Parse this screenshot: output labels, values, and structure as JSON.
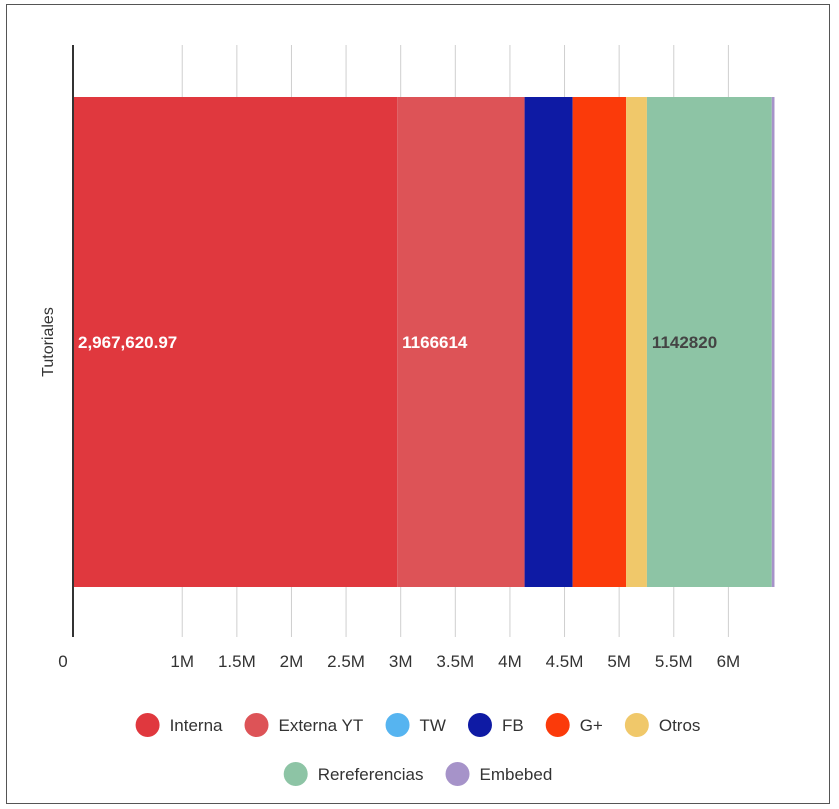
{
  "chart_data": {
    "type": "bar",
    "orientation": "horizontal-stacked",
    "title": "",
    "categories": [
      "Tutoriales"
    ],
    "ylabel": "Tutoriales",
    "xlabel": "",
    "xlim": [
      0,
      6500000
    ],
    "grid": true,
    "legend_position": "bottom",
    "x_ticks": [
      {
        "value": 0,
        "label": "0"
      },
      {
        "value": 1000000,
        "label": "1M"
      },
      {
        "value": 1500000,
        "label": "1.5M"
      },
      {
        "value": 2000000,
        "label": "2M"
      },
      {
        "value": 2500000,
        "label": "2.5M"
      },
      {
        "value": 3000000,
        "label": "3M"
      },
      {
        "value": 3500000,
        "label": "3.5M"
      },
      {
        "value": 4000000,
        "label": "4M"
      },
      {
        "value": 4500000,
        "label": "4.5M"
      },
      {
        "value": 5000000,
        "label": "5M"
      },
      {
        "value": 5500000,
        "label": "5.5M"
      },
      {
        "value": 6000000,
        "label": "6M"
      }
    ],
    "series": [
      {
        "name": "Interna",
        "values": [
          2967620.97
        ],
        "color": "#e0383e",
        "label": "2,967,620.97",
        "label_color": "#ffffff"
      },
      {
        "name": "Externa YT",
        "values": [
          1166614
        ],
        "color": "#dd5357",
        "label": "1166614",
        "label_color": "#ffffff"
      },
      {
        "name": "TW",
        "values": [
          0
        ],
        "color": "#56b4f0",
        "label": "",
        "label_color": "#ffffff"
      },
      {
        "name": "FB",
        "values": [
          440000
        ],
        "color": "#0e1aa4",
        "label": "",
        "label_color": "#ffffff"
      },
      {
        "name": "G+",
        "values": [
          490000
        ],
        "color": "#fb3a0a",
        "label": "",
        "label_color": "#ffffff"
      },
      {
        "name": "Otros",
        "values": [
          190000
        ],
        "color": "#f0c86a",
        "label": "",
        "label_color": "#ffffff"
      },
      {
        "name": "Rereferencias",
        "values": [
          1142820
        ],
        "color": "#8dc4a5",
        "label": "1142820",
        "label_color": "#444444"
      },
      {
        "name": "Embebed",
        "values": [
          25000
        ],
        "color": "#a693c9",
        "label": "",
        "label_color": "#ffffff"
      }
    ]
  }
}
